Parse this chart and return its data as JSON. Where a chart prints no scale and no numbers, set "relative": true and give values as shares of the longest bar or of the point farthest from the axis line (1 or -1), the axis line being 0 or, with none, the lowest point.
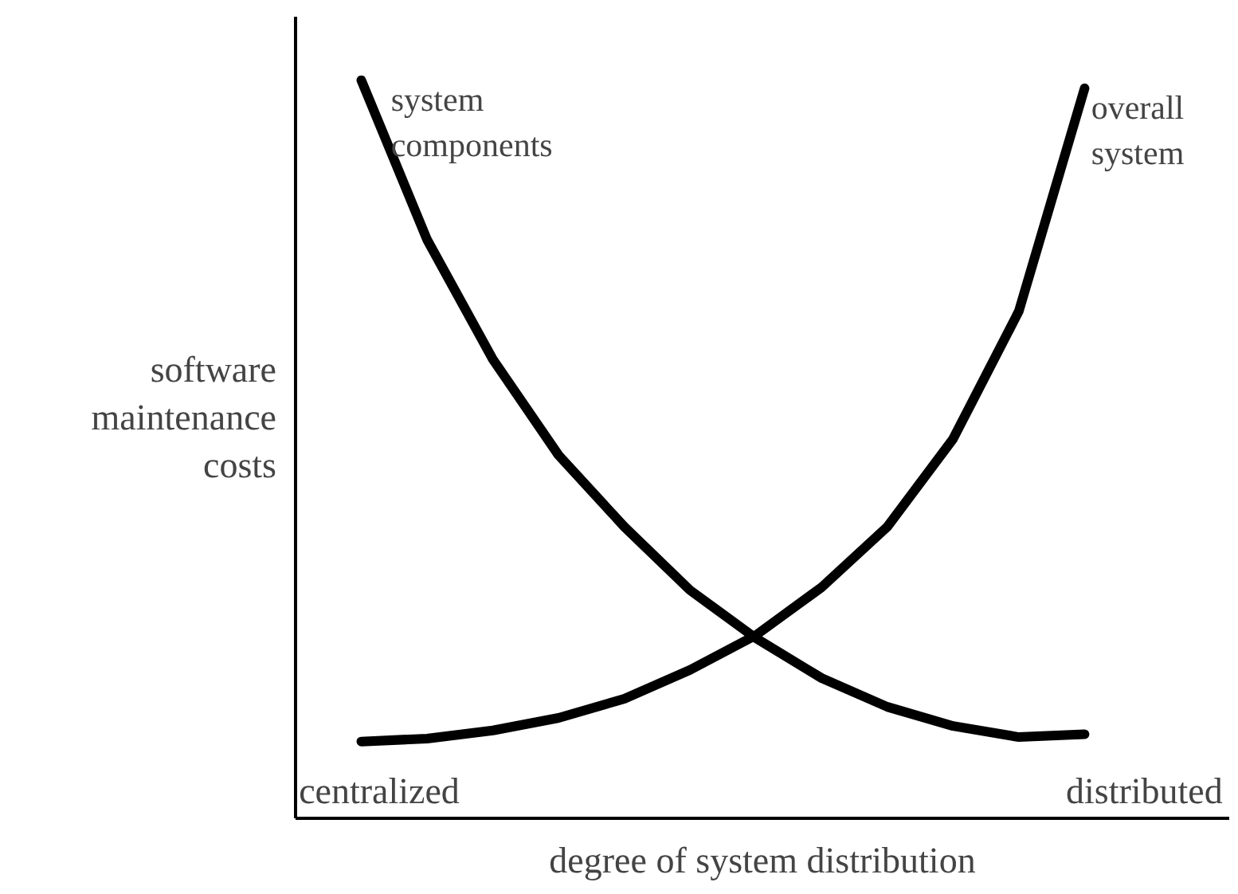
{
  "chart_data": {
    "type": "line",
    "relative": true,
    "xlabel": "degree of system distribution",
    "ylabel": "software maintenance costs",
    "categories": [
      null,
      null,
      null,
      null,
      null,
      null,
      null,
      null,
      null,
      null,
      null,
      null
    ],
    "series": [
      {
        "name": "system components",
        "color": "#000000",
        "values": [
          1.0,
          0.784,
          0.622,
          0.492,
          0.395,
          0.309,
          0.244,
          0.19,
          0.151,
          0.125,
          0.11,
          0.114
        ]
      },
      {
        "name": "overall system",
        "color": "#000000",
        "values": [
          0.104,
          0.108,
          0.119,
          0.136,
          0.162,
          0.201,
          0.248,
          0.313,
          0.395,
          0.514,
          0.687,
          0.989
        ]
      }
    ],
    "annotations": [
      "centralized",
      "distributed"
    ]
  }
}
